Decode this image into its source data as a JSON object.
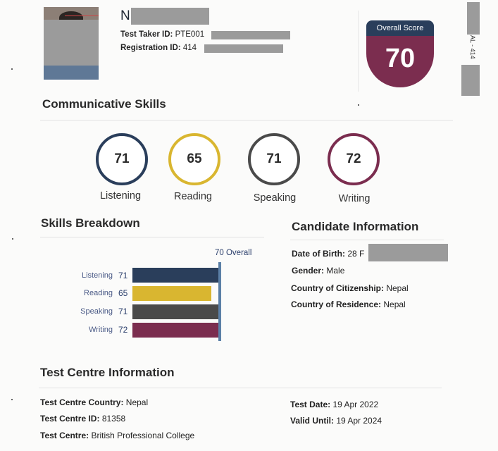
{
  "candidate": {
    "name_initial": "N",
    "test_taker_id_label": "Test Taker ID:",
    "test_taker_id_value": "PTE001",
    "registration_id_label": "Registration ID:",
    "registration_id_value": "414"
  },
  "overall": {
    "label": "Overall Score",
    "value": "70"
  },
  "communicative": {
    "title": "Communicative Skills",
    "skills": [
      {
        "name": "Listening",
        "score": "71",
        "color": "#2a3e5b"
      },
      {
        "name": "Reading",
        "score": "65",
        "color": "#d9b630"
      },
      {
        "name": "Speaking",
        "score": "71",
        "color": "#4a4a4a"
      },
      {
        "name": "Writing",
        "score": "72",
        "color": "#7b2d4f"
      }
    ]
  },
  "breakdown": {
    "title": "Skills Breakdown",
    "overall_label": "70 Overall",
    "rows": [
      {
        "name": "Listening",
        "score": "71",
        "color": "#2a3e5b"
      },
      {
        "name": "Reading",
        "score": "65",
        "color": "#d9b630"
      },
      {
        "name": "Speaking",
        "score": "71",
        "color": "#4a4a4a"
      },
      {
        "name": "Writing",
        "score": "72",
        "color": "#7b2d4f"
      }
    ],
    "overall_line_color": "#5b7fa6"
  },
  "candidate_info": {
    "title": "Candidate Information",
    "dob_label": "Date of Birth:",
    "dob_value": "28 F",
    "gender_label": "Gender:",
    "gender_value": "Male",
    "citizenship_label": "Country of Citizenship:",
    "citizenship_value": "Nepal",
    "residence_label": "Country of Residence:",
    "residence_value": "Nepal"
  },
  "test_centre": {
    "title": "Test Centre Information",
    "country_label": "Test Centre Country:",
    "country_value": "Nepal",
    "id_label": "Test Centre ID:",
    "id_value": "81358",
    "centre_label": "Test Centre:",
    "centre_value": "British Professional College",
    "date_label": "Test Date:",
    "date_value": "19 Apr 2022",
    "valid_label": "Valid Until:",
    "valid_value": "19 Apr 2024"
  },
  "edge_text": {
    "side": "AL - 414"
  }
}
